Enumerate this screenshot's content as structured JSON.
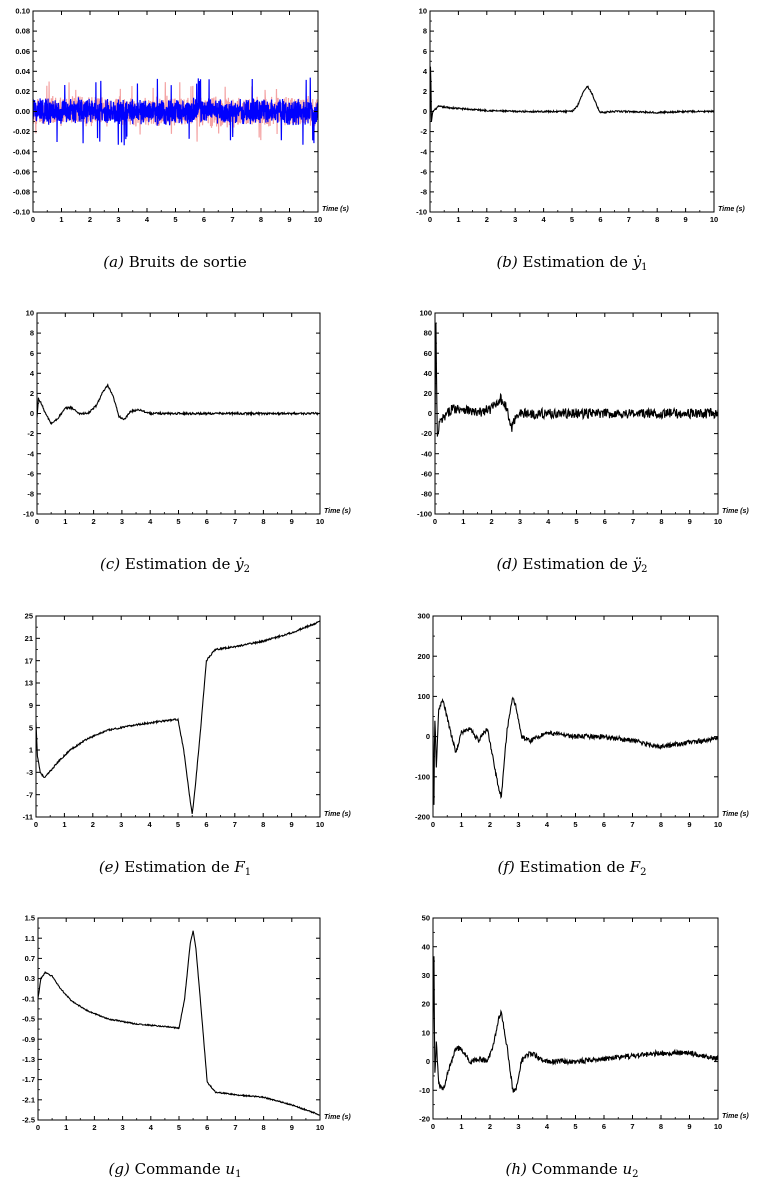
{
  "panels": [
    {
      "letter": "(a)",
      "caption": "Bruits de sortie",
      "math": "",
      "chart_data": {
        "type": "line",
        "xlabel": "Time (s)",
        "ylabel": "",
        "xlim": [
          0,
          10
        ],
        "ylim": [
          -0.1,
          0.1
        ],
        "xticks": [
          "0",
          "1",
          "2",
          "3",
          "4",
          "5",
          "6",
          "7",
          "8",
          "9",
          "10"
        ],
        "yticks": [
          "-0.10",
          "-0.08",
          "-0.06",
          "-0.04",
          "-0.02",
          "0.00",
          "0.02",
          "0.04",
          "0.06",
          "0.08",
          "0.10"
        ],
        "series": [
          {
            "color": "#f4a3a3",
            "kind": "noise",
            "amplitude": 0.014,
            "peak": 0.03
          },
          {
            "color": "#0000ff",
            "kind": "noise",
            "amplitude": 0.012,
            "peak": 0.034
          }
        ]
      }
    },
    {
      "letter": "(b)",
      "caption": "Estimation de",
      "math": "ẏ",
      "sub": "1",
      "chart_data": {
        "type": "line",
        "xlabel": "Time (s)",
        "ylabel": "",
        "xlim": [
          0,
          10
        ],
        "ylim": [
          -10,
          10
        ],
        "xticks": [
          "0",
          "1",
          "2",
          "3",
          "4",
          "5",
          "6",
          "7",
          "8",
          "9",
          "10"
        ],
        "yticks": [
          "-10",
          "-8",
          "-6",
          "-4",
          "-2",
          "0",
          "2",
          "4",
          "6",
          "8",
          "10"
        ],
        "series": [
          {
            "color": "#000000",
            "kind": "points",
            "noise": 0.08,
            "x": [
              0,
              0.02,
              0.05,
              0.1,
              0.3,
              0.6,
              1.0,
              2.0,
              3.0,
              4.0,
              5.0,
              5.2,
              5.4,
              5.55,
              5.7,
              5.9,
              6.0,
              6.5,
              7.0,
              8.0,
              9.0,
              10.0
            ],
            "y": [
              -1,
              5.5,
              -1,
              0,
              0.5,
              0.4,
              0.3,
              0.1,
              0.0,
              0.0,
              0.0,
              0.6,
              2.0,
              2.5,
              1.8,
              0.4,
              -0.1,
              0.0,
              0.0,
              -0.1,
              0.0,
              0.0
            ]
          }
        ]
      }
    },
    {
      "letter": "(c)",
      "caption": "Estimation de",
      "math": "ẏ",
      "sub": "2",
      "chart_data": {
        "type": "line",
        "xlabel": "Time (s)",
        "ylabel": "",
        "xlim": [
          0,
          10
        ],
        "ylim": [
          -10,
          10
        ],
        "xticks": [
          "0",
          "1",
          "2",
          "3",
          "4",
          "5",
          "6",
          "7",
          "8",
          "9",
          "10"
        ],
        "yticks": [
          "-10",
          "-8",
          "-6",
          "-4",
          "-2",
          "0",
          "2",
          "4",
          "6",
          "8",
          "10"
        ],
        "series": [
          {
            "color": "#000000",
            "kind": "points",
            "noise": 0.1,
            "x": [
              0,
              0.05,
              0.15,
              0.3,
              0.5,
              0.7,
              1.0,
              1.2,
              1.5,
              1.8,
              2.1,
              2.3,
              2.5,
              2.7,
              2.9,
              3.1,
              3.3,
              3.6,
              4.0,
              5.0,
              6.0,
              7.0,
              8.0,
              9.0,
              10.0
            ],
            "y": [
              -0.5,
              1.5,
              1.0,
              0.0,
              -1.0,
              -0.6,
              0.5,
              0.6,
              0.0,
              0.0,
              0.8,
              2.0,
              2.8,
              1.6,
              -0.3,
              -0.6,
              0.2,
              0.4,
              0.0,
              0.0,
              0.0,
              0.0,
              0.0,
              0.0,
              0.0
            ]
          }
        ]
      }
    },
    {
      "letter": "(d)",
      "caption": "Estimation de",
      "math": "ÿ",
      "sub": "2",
      "chart_data": {
        "type": "line",
        "xlabel": "Time (s)",
        "ylabel": "",
        "xlim": [
          0,
          10
        ],
        "ylim": [
          -100,
          100
        ],
        "xticks": [
          "0",
          "1",
          "2",
          "3",
          "4",
          "5",
          "6",
          "7",
          "8",
          "9",
          "10"
        ],
        "yticks": [
          "-100",
          "-80",
          "-60",
          "-40",
          "-20",
          "0",
          "20",
          "40",
          "60",
          "80",
          "100"
        ],
        "series": [
          {
            "color": "#000000",
            "kind": "points",
            "noise": 5,
            "x": [
              0,
              0.03,
              0.08,
              0.15,
              0.3,
              0.6,
              1.0,
              1.5,
              2.0,
              2.3,
              2.5,
              2.7,
              2.9,
              3.2,
              4.0,
              5.0,
              6.0,
              7.0,
              8.0,
              9.0,
              10.0
            ],
            "y": [
              -20,
              95,
              -28,
              -10,
              -5,
              5,
              5,
              0,
              5,
              15,
              8,
              -15,
              0,
              0,
              0,
              0,
              0,
              0,
              0,
              0,
              0
            ]
          }
        ]
      }
    },
    {
      "letter": "(e)",
      "caption": "Estimation de",
      "math": "F",
      "sub": "1",
      "chart_data": {
        "type": "line",
        "xlabel": "Time (s)",
        "ylabel": "",
        "xlim": [
          0,
          10
        ],
        "ylim": [
          -11,
          25
        ],
        "xticks": [
          "0",
          "1",
          "2",
          "3",
          "4",
          "5",
          "6",
          "7",
          "8",
          "9",
          "10"
        ],
        "yticks": [
          "-11",
          "-7",
          "-3",
          "1",
          "5",
          "9",
          "13",
          "17",
          "21",
          "25"
        ],
        "series": [
          {
            "color": "#000000",
            "kind": "points",
            "noise": 0.15,
            "x": [
              0,
              0.05,
              0.15,
              0.3,
              0.5,
              0.8,
              1.2,
              1.8,
              2.5,
              3.5,
              4.5,
              5.0,
              5.2,
              5.4,
              5.5,
              5.6,
              5.8,
              6.0,
              6.3,
              7.0,
              8.0,
              9.0,
              10.0
            ],
            "y": [
              6,
              0,
              -3,
              -4,
              -2.8,
              -1,
              1,
              3,
              4.5,
              5.5,
              6.2,
              6.5,
              1,
              -7,
              -10.5,
              -6,
              5,
              17,
              19,
              19.5,
              20.5,
              22,
              24
            ]
          }
        ]
      }
    },
    {
      "letter": "(f)",
      "caption": "Estimation de",
      "math": "F",
      "sub": "2",
      "chart_data": {
        "type": "line",
        "xlabel": "Time (s)",
        "ylabel": "",
        "xlim": [
          0,
          10
        ],
        "ylim": [
          -200,
          300
        ],
        "xticks": [
          "0",
          "1",
          "2",
          "3",
          "4",
          "5",
          "6",
          "7",
          "8",
          "9",
          "10"
        ],
        "yticks": [
          "-200",
          "-100",
          "0",
          "100",
          "200",
          "300"
        ],
        "series": [
          {
            "color": "#000000",
            "kind": "points",
            "noise": 6,
            "x": [
              0,
              0.03,
              0.06,
              0.12,
              0.2,
              0.35,
              0.55,
              0.8,
              1.0,
              1.3,
              1.6,
              1.9,
              2.1,
              2.3,
              2.4,
              2.6,
              2.8,
              2.9,
              3.1,
              3.4,
              4.0,
              5.0,
              6.0,
              7.0,
              8.0,
              9.0,
              10.0
            ],
            "y": [
              20,
              -200,
              60,
              -80,
              70,
              90,
              30,
              -40,
              10,
              20,
              -10,
              20,
              -50,
              -130,
              -150,
              20,
              95,
              80,
              0,
              -10,
              10,
              0,
              0,
              -10,
              -25,
              -15,
              -5
            ]
          }
        ]
      }
    },
    {
      "letter": "(g)",
      "caption": "Commande",
      "math": "u",
      "sub": "1",
      "chart_data": {
        "type": "line",
        "xlabel": "Time (s)",
        "ylabel": "",
        "xlim": [
          0,
          10
        ],
        "ylim": [
          -2.5,
          1.5
        ],
        "xticks": [
          "0",
          "1",
          "2",
          "3",
          "4",
          "5",
          "6",
          "7",
          "8",
          "9",
          "10"
        ],
        "yticks": [
          "-2.5",
          "-2.1",
          "-1.7",
          "-1.3",
          "-0.9",
          "-0.5",
          "-0.1",
          "0.3",
          "0.7",
          "1.1",
          "1.5"
        ],
        "series": [
          {
            "color": "#000000",
            "kind": "points",
            "noise": 0.012,
            "x": [
              0,
              0.1,
              0.25,
              0.5,
              0.8,
              1.2,
              1.8,
              2.5,
              3.5,
              4.5,
              5.0,
              5.2,
              5.4,
              5.5,
              5.6,
              5.8,
              6.0,
              6.3,
              7.0,
              8.0,
              9.0,
              10.0
            ],
            "y": [
              -0.1,
              0.3,
              0.42,
              0.35,
              0.1,
              -0.15,
              -0.35,
              -0.5,
              -0.6,
              -0.65,
              -0.68,
              -0.1,
              1.0,
              1.25,
              0.9,
              -0.4,
              -1.75,
              -1.95,
              -2.0,
              -2.05,
              -2.2,
              -2.4
            ]
          }
        ]
      }
    },
    {
      "letter": "(h)",
      "caption": "Commande",
      "math": "u",
      "sub": "2",
      "chart_data": {
        "type": "line",
        "xlabel": "Time (s)",
        "ylabel": "",
        "xlim": [
          0,
          10
        ],
        "ylim": [
          -20,
          50
        ],
        "xticks": [
          "0",
          "1",
          "2",
          "3",
          "4",
          "5",
          "6",
          "7",
          "8",
          "9",
          "10"
        ],
        "yticks": [
          "-20",
          "-10",
          "0",
          "10",
          "20",
          "30",
          "40",
          "50"
        ],
        "series": [
          {
            "color": "#000000",
            "kind": "points",
            "noise": 0.9,
            "x": [
              0,
              0.03,
              0.06,
              0.12,
              0.2,
              0.35,
              0.55,
              0.8,
              1.0,
              1.3,
              1.6,
              1.9,
              2.1,
              2.3,
              2.4,
              2.6,
              2.8,
              2.9,
              3.1,
              3.4,
              4.0,
              5.0,
              6.0,
              7.0,
              8.0,
              9.0,
              10.0
            ],
            "y": [
              10,
              42,
              -5,
              7,
              -8,
              -10,
              -3,
              5,
              4,
              0,
              1,
              0,
              5,
              15,
              17,
              5,
              -10,
              -10,
              0,
              3,
              0,
              0,
              1,
              2,
              3,
              3,
              1
            ]
          }
        ]
      }
    }
  ]
}
